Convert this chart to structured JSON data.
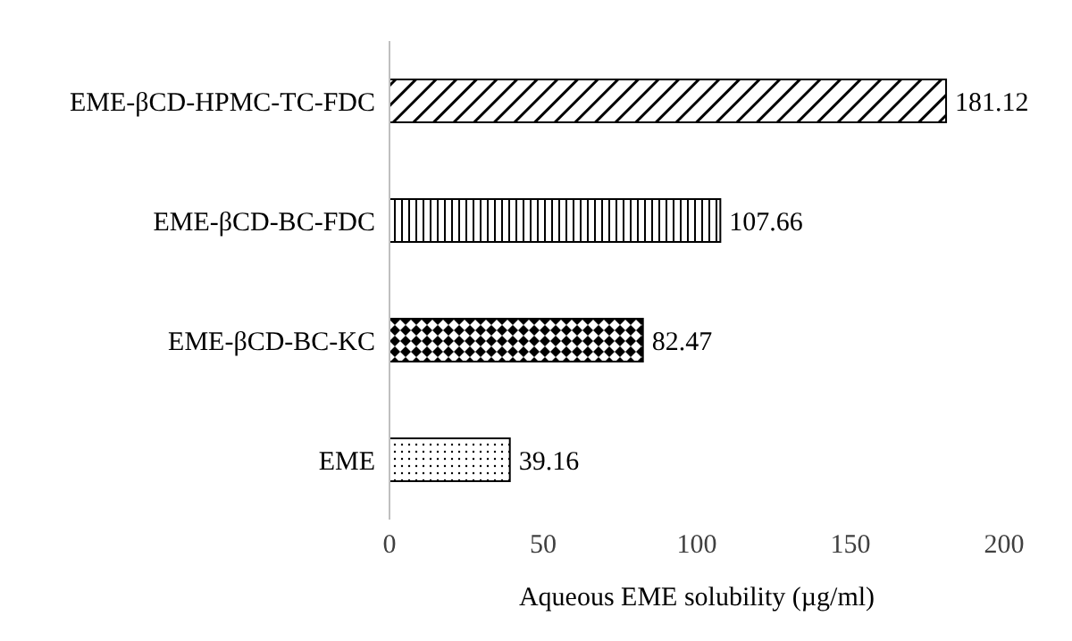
{
  "chart_data": {
    "type": "bar",
    "orientation": "horizontal",
    "xlabel": "Aqueous EME solubility (µg/ml)",
    "categories": [
      "EME-βCD-HPMC-TC-FDC",
      "EME-βCD-BC-FDC",
      "EME-βCD-BC-KC",
      "EME"
    ],
    "values": [
      181.12,
      107.66,
      82.47,
      39.16
    ],
    "color": "#000000",
    "xlim": [
      0,
      200
    ],
    "xticks": [
      0,
      50,
      100,
      150,
      200
    ],
    "data_labels": true
  }
}
